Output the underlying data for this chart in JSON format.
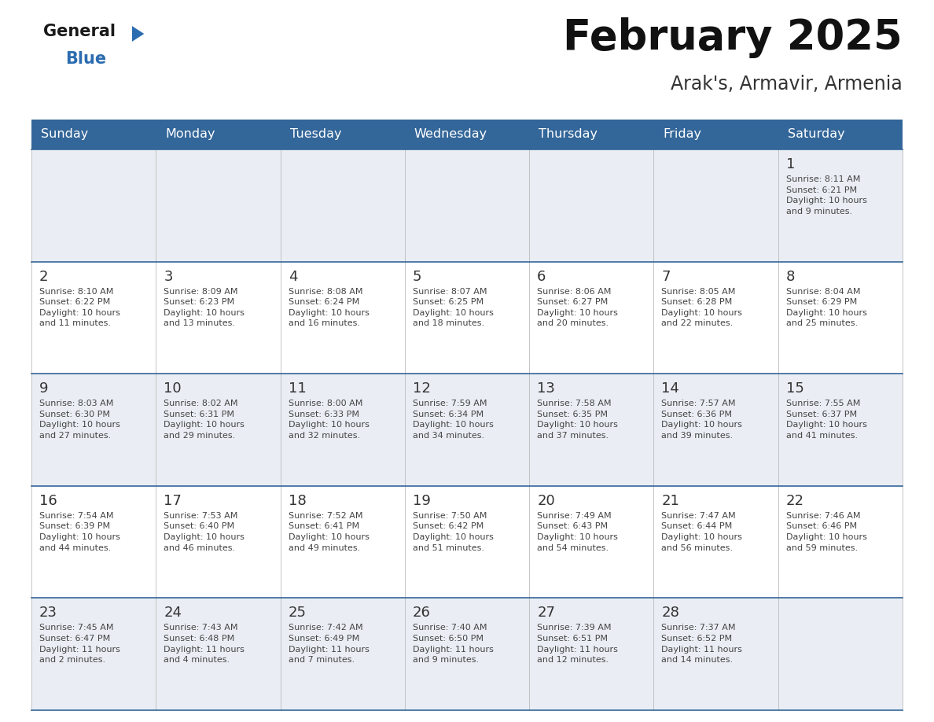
{
  "title": "February 2025",
  "subtitle": "Arak's, Armavir, Armenia",
  "header_bg": "#336699",
  "header_text": "#FFFFFF",
  "day_num_color": "#333333",
  "info_color": "#444444",
  "row_bg_light": "#EAEEF4",
  "row_bg_white": "#FFFFFF",
  "divider_color": "#336699",
  "vert_divider_color": "#BBBBBB",
  "logo_general_color": "#1a1a1a",
  "logo_blue_color": "#2B6CB0",
  "logo_triangle_color": "#2B6CB0",
  "day_headers": [
    "Sunday",
    "Monday",
    "Tuesday",
    "Wednesday",
    "Thursday",
    "Friday",
    "Saturday"
  ],
  "weeks": [
    [
      {
        "day": null,
        "info": ""
      },
      {
        "day": null,
        "info": ""
      },
      {
        "day": null,
        "info": ""
      },
      {
        "day": null,
        "info": ""
      },
      {
        "day": null,
        "info": ""
      },
      {
        "day": null,
        "info": ""
      },
      {
        "day": 1,
        "info": "Sunrise: 8:11 AM\nSunset: 6:21 PM\nDaylight: 10 hours\nand 9 minutes."
      }
    ],
    [
      {
        "day": 2,
        "info": "Sunrise: 8:10 AM\nSunset: 6:22 PM\nDaylight: 10 hours\nand 11 minutes."
      },
      {
        "day": 3,
        "info": "Sunrise: 8:09 AM\nSunset: 6:23 PM\nDaylight: 10 hours\nand 13 minutes."
      },
      {
        "day": 4,
        "info": "Sunrise: 8:08 AM\nSunset: 6:24 PM\nDaylight: 10 hours\nand 16 minutes."
      },
      {
        "day": 5,
        "info": "Sunrise: 8:07 AM\nSunset: 6:25 PM\nDaylight: 10 hours\nand 18 minutes."
      },
      {
        "day": 6,
        "info": "Sunrise: 8:06 AM\nSunset: 6:27 PM\nDaylight: 10 hours\nand 20 minutes."
      },
      {
        "day": 7,
        "info": "Sunrise: 8:05 AM\nSunset: 6:28 PM\nDaylight: 10 hours\nand 22 minutes."
      },
      {
        "day": 8,
        "info": "Sunrise: 8:04 AM\nSunset: 6:29 PM\nDaylight: 10 hours\nand 25 minutes."
      }
    ],
    [
      {
        "day": 9,
        "info": "Sunrise: 8:03 AM\nSunset: 6:30 PM\nDaylight: 10 hours\nand 27 minutes."
      },
      {
        "day": 10,
        "info": "Sunrise: 8:02 AM\nSunset: 6:31 PM\nDaylight: 10 hours\nand 29 minutes."
      },
      {
        "day": 11,
        "info": "Sunrise: 8:00 AM\nSunset: 6:33 PM\nDaylight: 10 hours\nand 32 minutes."
      },
      {
        "day": 12,
        "info": "Sunrise: 7:59 AM\nSunset: 6:34 PM\nDaylight: 10 hours\nand 34 minutes."
      },
      {
        "day": 13,
        "info": "Sunrise: 7:58 AM\nSunset: 6:35 PM\nDaylight: 10 hours\nand 37 minutes."
      },
      {
        "day": 14,
        "info": "Sunrise: 7:57 AM\nSunset: 6:36 PM\nDaylight: 10 hours\nand 39 minutes."
      },
      {
        "day": 15,
        "info": "Sunrise: 7:55 AM\nSunset: 6:37 PM\nDaylight: 10 hours\nand 41 minutes."
      }
    ],
    [
      {
        "day": 16,
        "info": "Sunrise: 7:54 AM\nSunset: 6:39 PM\nDaylight: 10 hours\nand 44 minutes."
      },
      {
        "day": 17,
        "info": "Sunrise: 7:53 AM\nSunset: 6:40 PM\nDaylight: 10 hours\nand 46 minutes."
      },
      {
        "day": 18,
        "info": "Sunrise: 7:52 AM\nSunset: 6:41 PM\nDaylight: 10 hours\nand 49 minutes."
      },
      {
        "day": 19,
        "info": "Sunrise: 7:50 AM\nSunset: 6:42 PM\nDaylight: 10 hours\nand 51 minutes."
      },
      {
        "day": 20,
        "info": "Sunrise: 7:49 AM\nSunset: 6:43 PM\nDaylight: 10 hours\nand 54 minutes."
      },
      {
        "day": 21,
        "info": "Sunrise: 7:47 AM\nSunset: 6:44 PM\nDaylight: 10 hours\nand 56 minutes."
      },
      {
        "day": 22,
        "info": "Sunrise: 7:46 AM\nSunset: 6:46 PM\nDaylight: 10 hours\nand 59 minutes."
      }
    ],
    [
      {
        "day": 23,
        "info": "Sunrise: 7:45 AM\nSunset: 6:47 PM\nDaylight: 11 hours\nand 2 minutes."
      },
      {
        "day": 24,
        "info": "Sunrise: 7:43 AM\nSunset: 6:48 PM\nDaylight: 11 hours\nand 4 minutes."
      },
      {
        "day": 25,
        "info": "Sunrise: 7:42 AM\nSunset: 6:49 PM\nDaylight: 11 hours\nand 7 minutes."
      },
      {
        "day": 26,
        "info": "Sunrise: 7:40 AM\nSunset: 6:50 PM\nDaylight: 11 hours\nand 9 minutes."
      },
      {
        "day": 27,
        "info": "Sunrise: 7:39 AM\nSunset: 6:51 PM\nDaylight: 11 hours\nand 12 minutes."
      },
      {
        "day": 28,
        "info": "Sunrise: 7:37 AM\nSunset: 6:52 PM\nDaylight: 11 hours\nand 14 minutes."
      },
      {
        "day": null,
        "info": ""
      }
    ]
  ]
}
